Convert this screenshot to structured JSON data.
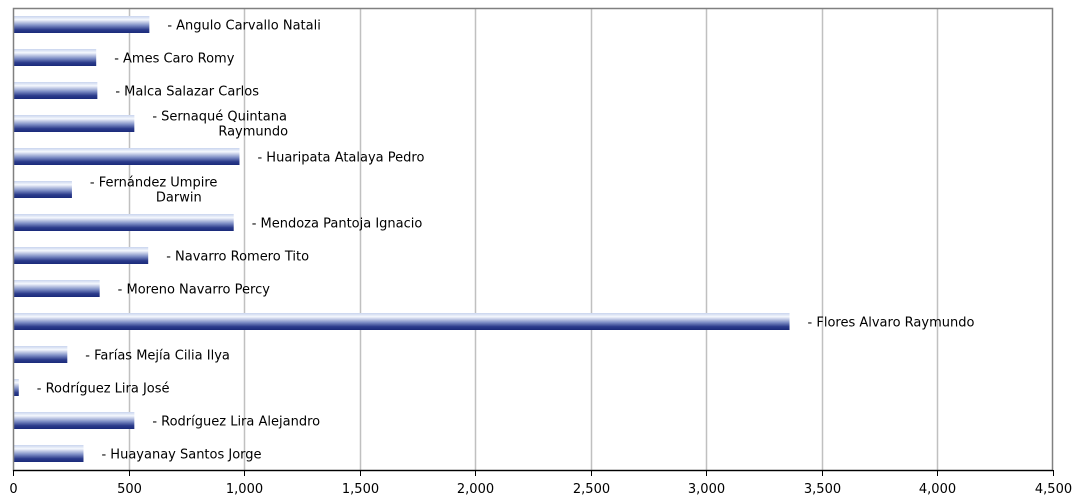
{
  "chart_data": {
    "type": "bar",
    "orientation": "horizontal",
    "title": "",
    "xlabel": "",
    "ylabel": "",
    "xlim": [
      0,
      4500
    ],
    "x_ticks": [
      0,
      500,
      1000,
      1500,
      2000,
      2500,
      3000,
      3500,
      4000,
      4500
    ],
    "x_tick_labels": [
      "0",
      "500",
      "1,000",
      "1,500",
      "2,000",
      "2,500",
      "3,000",
      "3,500",
      "4,000",
      "4,500"
    ],
    "grid": "vertical",
    "legend": "none",
    "colors": {
      "bar_dark": "#1a2a7a",
      "bar_light": "#e6ecf8",
      "grid": "#c0c0c0",
      "axis": "#808080"
    },
    "bars": [
      {
        "label": "- Angulo Carvallo Natali",
        "value": 590
      },
      {
        "label": "- Ames Caro Romy",
        "value": 360
      },
      {
        "label": "- Malca Salazar Carlos",
        "value": 365
      },
      {
        "label": "- Sernaqué Quintana Raymundo",
        "label_lines": [
          "- Sernaqué Quintana",
          "Raymundo"
        ],
        "value": 525
      },
      {
        "label": "- Huaripata Atalaya Pedro",
        "value": 980
      },
      {
        "label": "- Fernández Umpire Darwin",
        "label_lines": [
          "- Fernández Umpire",
          "Darwin"
        ],
        "value": 255
      },
      {
        "label": "- Mendoza Pantoja Ignacio",
        "value": 955
      },
      {
        "label": "- Navarro Romero Tito",
        "value": 585
      },
      {
        "label": "- Moreno Navarro Percy",
        "value": 375
      },
      {
        "label": "- Flores  Alvaro Raymundo",
        "value": 3360
      },
      {
        "label": "- Farías Mejía Cilia Ilya",
        "value": 235
      },
      {
        "label": "- Rodríguez Lira José",
        "value": 25
      },
      {
        "label": "- Rodríguez Lira Alejandro",
        "value": 525
      },
      {
        "label": "- Huayanay Santos Jorge",
        "value": 305
      }
    ]
  }
}
